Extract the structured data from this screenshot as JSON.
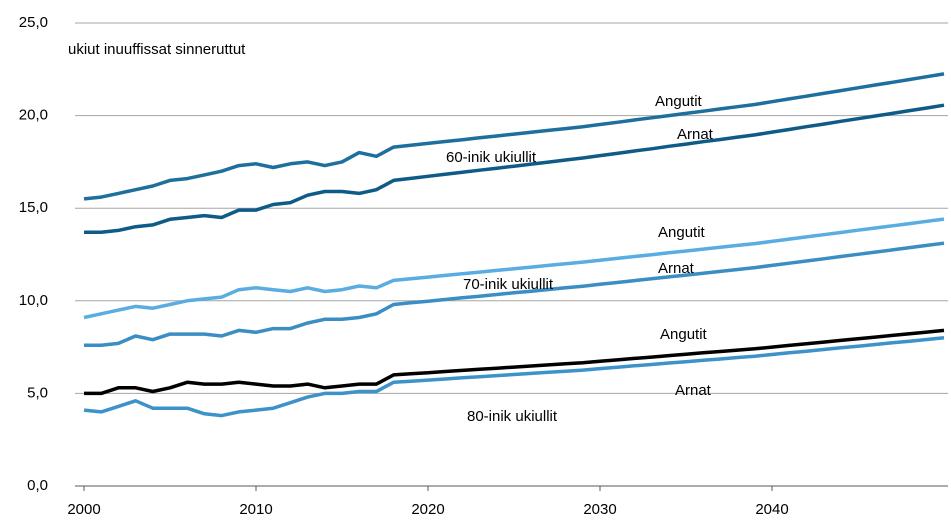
{
  "chart_data": {
    "type": "line",
    "x": [
      2000,
      2001,
      2002,
      2003,
      2004,
      2005,
      2006,
      2007,
      2008,
      2009,
      2010,
      2011,
      2012,
      2013,
      2014,
      2015,
      2016,
      2017,
      2018,
      2019,
      2020,
      2021,
      2022,
      2023,
      2024,
      2025,
      2026,
      2027,
      2028,
      2029,
      2030,
      2031,
      2032,
      2033,
      2034,
      2035,
      2036,
      2037,
      2038,
      2039,
      2040,
      2041,
      2042,
      2043,
      2044,
      2045,
      2046,
      2047,
      2048,
      2049,
      2050
    ],
    "xlim": [
      2000,
      2050
    ],
    "xticks": [
      2000,
      2010,
      2020,
      2030,
      2040
    ],
    "ylim": [
      0,
      25
    ],
    "yticks": [
      {
        "value": 0,
        "label": "0,0"
      },
      {
        "value": 5,
        "label": "5,0"
      },
      {
        "value": 10,
        "label": "10,0"
      },
      {
        "value": 15,
        "label": "15,0"
      },
      {
        "value": 20,
        "label": "20,0"
      },
      {
        "value": 25,
        "label": "25,0"
      }
    ],
    "grid": true,
    "series": [
      {
        "name": "Angutit",
        "color": "#1f6f9e",
        "values": [
          15.5,
          15.6,
          15.8,
          16.0,
          16.2,
          16.5,
          16.6,
          16.8,
          17.0,
          17.3,
          17.4,
          17.2,
          17.4,
          17.5,
          17.3,
          17.5,
          18.0,
          17.8,
          18.3,
          18.4,
          18.5,
          18.6,
          18.7,
          18.8,
          18.9,
          19.0,
          19.1,
          19.2,
          19.3,
          19.4,
          19.52,
          19.64,
          19.76,
          19.88,
          20.0,
          20.12,
          20.24,
          20.36,
          20.48,
          20.6,
          20.75,
          20.9,
          21.05,
          21.2,
          21.35,
          21.5,
          21.65,
          21.8,
          21.95,
          22.1,
          22.25
        ]
      },
      {
        "name": "Arnat",
        "color": "#0f5b87",
        "values": [
          13.7,
          13.7,
          13.8,
          14.0,
          14.1,
          14.4,
          14.5,
          14.6,
          14.5,
          14.9,
          14.9,
          15.2,
          15.3,
          15.7,
          15.9,
          15.9,
          15.8,
          16.0,
          16.5,
          16.61,
          16.72,
          16.83,
          16.94,
          17.05,
          17.16,
          17.27,
          17.38,
          17.49,
          17.6,
          17.71,
          17.84,
          17.96,
          18.09,
          18.21,
          18.34,
          18.46,
          18.59,
          18.71,
          18.84,
          18.96,
          19.11,
          19.25,
          19.4,
          19.54,
          19.69,
          19.83,
          19.98,
          20.12,
          20.27,
          20.41,
          20.56
        ]
      },
      {
        "name": "Angutit",
        "color": "#5aade0",
        "values": [
          9.1,
          9.3,
          9.5,
          9.7,
          9.6,
          9.8,
          10.0,
          10.1,
          10.2,
          10.6,
          10.7,
          10.6,
          10.5,
          10.7,
          10.5,
          10.6,
          10.8,
          10.7,
          11.1,
          11.19,
          11.28,
          11.37,
          11.46,
          11.55,
          11.64,
          11.73,
          11.82,
          11.91,
          12.0,
          12.09,
          12.19,
          12.29,
          12.39,
          12.49,
          12.59,
          12.69,
          12.79,
          12.89,
          12.99,
          13.09,
          13.21,
          13.33,
          13.45,
          13.57,
          13.69,
          13.81,
          13.93,
          14.05,
          14.17,
          14.29,
          14.41
        ]
      },
      {
        "name": "Arnat",
        "color": "#3a8ec4",
        "values": [
          7.6,
          7.6,
          7.7,
          8.1,
          7.9,
          8.2,
          8.2,
          8.2,
          8.1,
          8.4,
          8.3,
          8.5,
          8.5,
          8.8,
          9.0,
          9.0,
          9.1,
          9.3,
          9.8,
          9.89,
          9.98,
          10.07,
          10.16,
          10.25,
          10.34,
          10.43,
          10.52,
          10.61,
          10.7,
          10.79,
          10.89,
          10.99,
          11.09,
          11.19,
          11.29,
          11.39,
          11.49,
          11.59,
          11.69,
          11.79,
          11.91,
          12.03,
          12.15,
          12.27,
          12.39,
          12.51,
          12.63,
          12.75,
          12.87,
          12.99,
          13.11
        ]
      },
      {
        "name": "Angutit",
        "color": "#000000",
        "values": [
          5.0,
          5.0,
          5.3,
          5.3,
          5.1,
          5.3,
          5.6,
          5.5,
          5.5,
          5.6,
          5.5,
          5.4,
          5.4,
          5.5,
          5.3,
          5.4,
          5.5,
          5.5,
          6.0,
          6.06,
          6.12,
          6.18,
          6.24,
          6.3,
          6.36,
          6.42,
          6.48,
          6.54,
          6.6,
          6.66,
          6.74,
          6.81,
          6.89,
          6.96,
          7.04,
          7.11,
          7.19,
          7.26,
          7.34,
          7.41,
          7.5,
          7.59,
          7.68,
          7.77,
          7.86,
          7.95,
          8.04,
          8.13,
          8.22,
          8.31,
          8.4
        ]
      },
      {
        "name": "Arnat",
        "color": "#3d93c9",
        "values": [
          4.1,
          4.0,
          4.3,
          4.6,
          4.2,
          4.2,
          4.2,
          3.9,
          3.8,
          4.0,
          4.1,
          4.2,
          4.5,
          4.8,
          5.0,
          5.0,
          5.1,
          5.1,
          5.6,
          5.66,
          5.72,
          5.78,
          5.84,
          5.9,
          5.96,
          6.02,
          6.08,
          6.14,
          6.2,
          6.26,
          6.34,
          6.41,
          6.49,
          6.56,
          6.64,
          6.71,
          6.79,
          6.86,
          6.94,
          7.01,
          7.1,
          7.19,
          7.28,
          7.37,
          7.46,
          7.55,
          7.64,
          7.73,
          7.82,
          7.91,
          8.0
        ]
      }
    ],
    "y_label": "ukiut inuuffissat sinneruttut",
    "annotations": [
      "60-inik ukiullit",
      "70-inik ukiullit",
      "80-inik ukiullit"
    ]
  }
}
